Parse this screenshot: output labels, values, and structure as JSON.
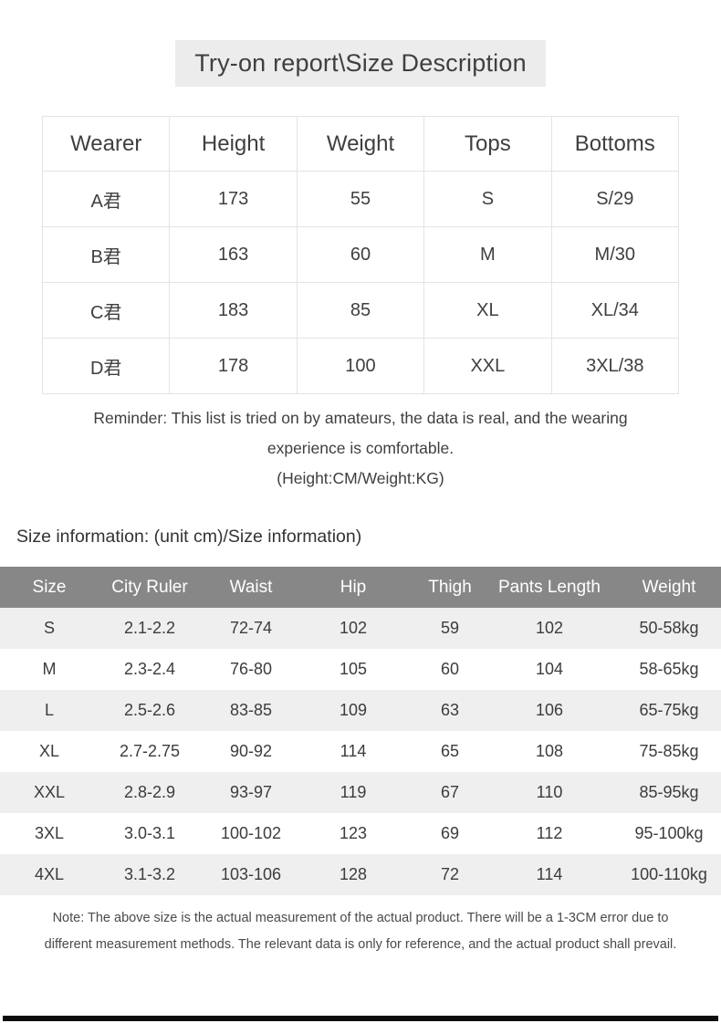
{
  "title": "Try-on report\\Size Description",
  "tryon_table": {
    "headers": [
      "Wearer",
      "Height",
      "Weight",
      "Tops",
      "Bottoms"
    ],
    "rows": [
      [
        "A君",
        "173",
        "55",
        "S",
        "S/29"
      ],
      [
        "B君",
        "163",
        "60",
        "M",
        "M/30"
      ],
      [
        "C君",
        "183",
        "85",
        "XL",
        "XL/34"
      ],
      [
        "D君",
        "178",
        "100",
        "XXL",
        "3XL/38"
      ]
    ]
  },
  "reminder": {
    "line1": "Reminder: This list is tried on by amateurs, the data is real, and the wearing",
    "line2": "experience is comfortable.",
    "line3": "(Height:CM/Weight:KG)"
  },
  "size_section": {
    "heading": "Size information: (unit cm)/Size information)",
    "table": {
      "headers": [
        "Size",
        "City Ruler",
        "Waist",
        "Hip",
        "Thigh",
        "Pants Length",
        "Weight"
      ],
      "rows": [
        [
          "S",
          "2.1-2.2",
          "72-74",
          "102",
          "59",
          "102",
          "50-58kg"
        ],
        [
          "M",
          "2.3-2.4",
          "76-80",
          "105",
          "60",
          "104",
          "58-65kg"
        ],
        [
          "L",
          "2.5-2.6",
          "83-85",
          "109",
          "63",
          "106",
          "65-75kg"
        ],
        [
          "XL",
          "2.7-2.75",
          "90-92",
          "114",
          "65",
          "108",
          "75-85kg"
        ],
        [
          "XXL",
          "2.8-2.9",
          "93-97",
          "119",
          "67",
          "110",
          "85-95kg"
        ],
        [
          "3XL",
          "3.0-3.1",
          "100-102",
          "123",
          "69",
          "112",
          "95-100kg"
        ],
        [
          "4XL",
          "3.1-3.2",
          "103-106",
          "128",
          "72",
          "114",
          "100-110kg"
        ]
      ]
    }
  },
  "note": {
    "line1": "Note: The above size is the actual measurement of the actual product. There will be a 1-3CM error due to",
    "line2": "different measurement methods. The relevant data is only for reference, and the actual product shall prevail."
  },
  "colors": {
    "title_bg": "#ececec",
    "table_border": "#e3e3e3",
    "size_header_bg": "#878787",
    "size_header_text": "#ffffff",
    "alt_row_bg": "#efefef",
    "text_dark": "#3f3f3f",
    "bottom_bar": "#0d0d0d"
  }
}
